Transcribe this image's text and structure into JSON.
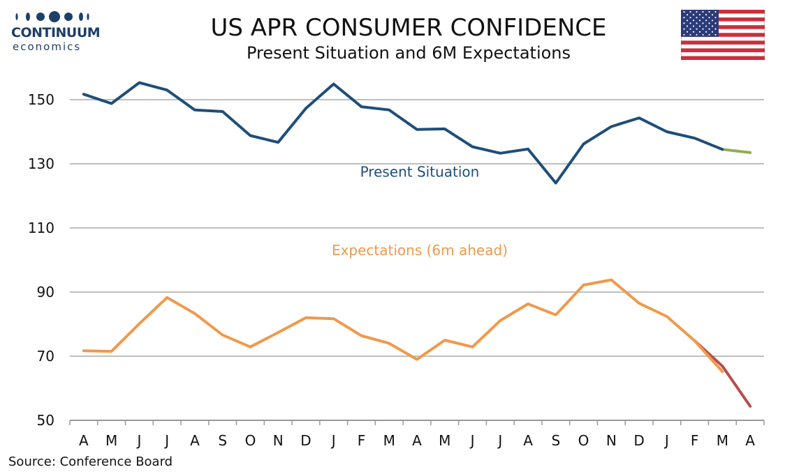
{
  "header": {
    "logo_brand": "CONTINUUM",
    "logo_sub": "economics",
    "title": "US APR CONSUMER CONFIDENCE",
    "subtitle": "Present Situation and 6M Expectations",
    "flag_icon": "us-flag-icon"
  },
  "footer": {
    "source": "Source: Conference Board"
  },
  "colors": {
    "present": "#1f4e79",
    "present_latest": "#8db04f",
    "expectations": "#f0994a",
    "expectations_latest": "#b84d4d",
    "grid": "#bfbfbf",
    "logo": "#1e3f66"
  },
  "chart_data": {
    "type": "line",
    "categories": [
      "A",
      "M",
      "J",
      "J",
      "A",
      "S",
      "O",
      "N",
      "D",
      "J",
      "F",
      "M",
      "A",
      "M",
      "J",
      "J",
      "A",
      "S",
      "O",
      "N",
      "D",
      "J",
      "F",
      "M",
      "A"
    ],
    "ylim": [
      50,
      155
    ],
    "yticks": [
      50,
      70,
      90,
      110,
      130,
      150
    ],
    "grid": true,
    "series": [
      {
        "name": "Present Situation",
        "values": [
          151.7,
          148.8,
          155.3,
          153.0,
          146.8,
          146.3,
          138.8,
          136.7,
          147.3,
          154.9,
          147.8,
          146.8,
          140.7,
          140.9,
          135.3,
          133.3,
          134.6,
          124.0,
          136.2,
          141.6,
          144.3,
          140.0,
          138.0,
          134.5,
          null
        ]
      },
      {
        "name": "Present Situation (revision / latest)",
        "values": [
          null,
          null,
          null,
          null,
          null,
          null,
          null,
          null,
          null,
          null,
          null,
          null,
          null,
          null,
          null,
          null,
          null,
          null,
          null,
          null,
          null,
          null,
          null,
          134.5,
          133.5
        ]
      },
      {
        "name": "Expectations (6m ahead)",
        "values": [
          71.7,
          71.5,
          80.1,
          88.3,
          83.3,
          76.6,
          72.9,
          77.4,
          82.0,
          81.7,
          76.4,
          74.0,
          69.0,
          75.0,
          72.9,
          81.1,
          86.3,
          82.9,
          92.2,
          93.8,
          86.5,
          82.4,
          74.8,
          65.2,
          null
        ]
      },
      {
        "name": "Expectations (revision / latest)",
        "values": [
          null,
          null,
          null,
          null,
          null,
          null,
          null,
          null,
          null,
          null,
          null,
          null,
          null,
          null,
          null,
          null,
          null,
          null,
          null,
          null,
          null,
          null,
          74.8,
          66.9,
          54.4
        ]
      }
    ],
    "labels": {
      "present": {
        "text": "Present Situation",
        "x_index": 12.6,
        "y": 126
      },
      "expectations": {
        "text": "Expectations (6m ahead)",
        "x_index": 12.6,
        "y": 101.5
      }
    }
  }
}
